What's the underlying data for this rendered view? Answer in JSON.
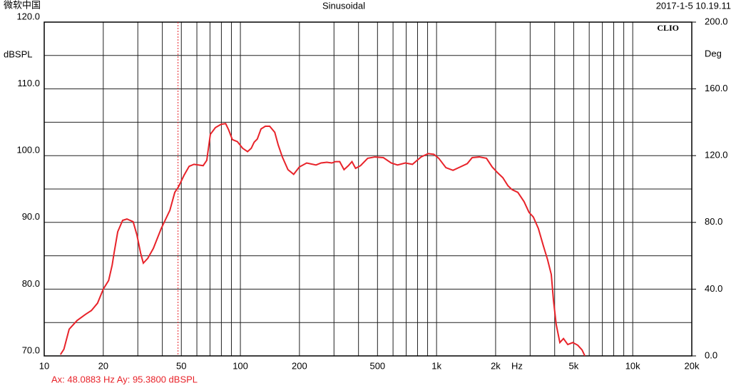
{
  "chart_data": {
    "type": "line",
    "header_left": "微软中国",
    "title": "Sinusoidal",
    "timestamp": "2017-1-5 10.19.11",
    "brand": "CLIO",
    "ylabel": "dBSPL",
    "y2label": "Deg",
    "xlabel": "Hz",
    "log_x": true,
    "grid": true,
    "color": "#e8232a",
    "xlim": [
      10,
      20000
    ],
    "xticks": [
      10,
      20,
      50,
      100,
      200,
      500,
      {
        "value": 1000,
        "label": "1k"
      },
      {
        "value": 2000,
        "label": "2k"
      },
      {
        "value": 5000,
        "label": "5k"
      },
      {
        "value": 10000,
        "label": "10k"
      },
      {
        "value": 20000,
        "label": "20k"
      }
    ],
    "xminor": [
      30,
      40,
      60,
      70,
      80,
      90,
      300,
      400,
      600,
      700,
      800,
      900,
      3000,
      4000,
      6000,
      7000,
      8000,
      9000
    ],
    "ylim": [
      70,
      120
    ],
    "yticks": [
      {
        "value": 70,
        "label": "70.0"
      },
      {
        "value": 80,
        "label": "80.0"
      },
      {
        "value": 90,
        "label": "90.0"
      },
      {
        "value": 100,
        "label": "100.0"
      },
      {
        "value": 110,
        "label": "110.0"
      },
      {
        "value": 120,
        "label": "120.0"
      }
    ],
    "yminor": [
      75,
      85,
      95,
      105,
      115
    ],
    "y2lim": [
      0,
      200
    ],
    "y2ticks": [
      {
        "value": 0,
        "label": "0.0"
      },
      {
        "value": 40,
        "label": "40.0"
      },
      {
        "value": 80,
        "label": "80.0"
      },
      {
        "value": 120,
        "label": "120.0"
      },
      {
        "value": 160,
        "label": "160.0"
      },
      {
        "value": 200,
        "label": "200.0"
      }
    ],
    "cursor": {
      "x": 48.0883,
      "text": "Ax: 48.0883 Hz  Ay: 95.3800 dBSPL"
    },
    "x": [
      12.1,
      12.6,
      13.4,
      14.7,
      16.2,
      17.4,
      18.7,
      20.0,
      21.3,
      22.2,
      22.7,
      23.7,
      25.1,
      26.4,
      28.4,
      29.7,
      31.0,
      32.0,
      33.7,
      36.0,
      39.5,
      43.7,
      46.3,
      48.3,
      51.7,
      54.8,
      58.0,
      64.6,
      67.4,
      70.3,
      74.6,
      79.8,
      84.1,
      87.0,
      91.0,
      96.5,
      102.7,
      108.8,
      113.6,
      117.5,
      122.0,
      127.4,
      134.0,
      141.0,
      149.7,
      155.9,
      163.6,
      174.8,
      186.9,
      199.7,
      217.7,
      242.9,
      257.8,
      275.8,
      292.6,
      305.2,
      320.9,
      337.5,
      355.2,
      370.5,
      386.5,
      409.8,
      445.7,
      484.7,
      535.7,
      587.0,
      632.2,
      692.8,
      753.7,
      833.5,
      906.3,
      968.4,
      1026,
      1116,
      1213,
      1319,
      1434,
      1519,
      1652,
      1796,
      1921,
      2053,
      2177,
      2310,
      2427,
      2596,
      2794,
      2961,
      3114,
      3302,
      3502,
      3682,
      3844,
      3942,
      4073,
      4251,
      4436,
      4665,
      4947,
      5246,
      5515,
      5703
    ],
    "values": [
      70.2,
      71.0,
      74.0,
      75.3,
      76.2,
      76.8,
      77.9,
      80.0,
      81.3,
      83.6,
      85.4,
      88.6,
      90.3,
      90.5,
      90.1,
      88.1,
      85.4,
      83.9,
      84.6,
      86.1,
      89.1,
      91.8,
      94.5,
      95.3,
      97.1,
      98.4,
      98.7,
      98.5,
      99.3,
      103.2,
      104.2,
      104.7,
      104.8,
      103.9,
      102.4,
      102.1,
      101.1,
      100.6,
      101.1,
      102.0,
      102.5,
      104.0,
      104.4,
      104.4,
      103.5,
      101.6,
      99.8,
      97.9,
      97.2,
      98.3,
      98.9,
      98.6,
      98.9,
      99.0,
      98.9,
      99.1,
      99.1,
      97.9,
      98.5,
      99.1,
      98.1,
      98.5,
      99.6,
      99.8,
      99.7,
      98.9,
      98.6,
      98.9,
      98.7,
      99.8,
      100.3,
      100.2,
      99.6,
      98.2,
      97.8,
      98.3,
      98.8,
      99.7,
      99.8,
      99.6,
      98.3,
      97.4,
      96.7,
      95.5,
      94.9,
      94.5,
      93.1,
      91.5,
      90.8,
      89.1,
      86.5,
      84.4,
      82.2,
      78.4,
      74.7,
      72.0,
      72.6,
      71.7,
      72.0,
      71.6,
      70.9,
      70.0
    ]
  }
}
